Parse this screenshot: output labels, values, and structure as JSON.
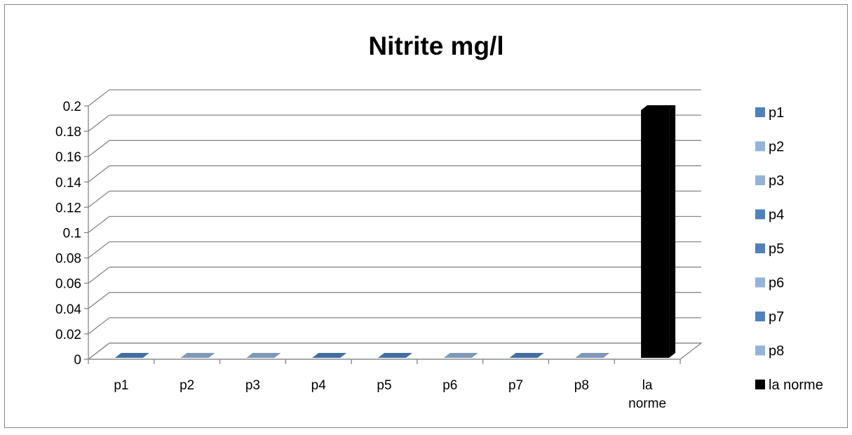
{
  "chart_data": {
    "type": "bar",
    "title": "Nitrite mg/l",
    "xlabel": "",
    "ylabel": "",
    "categories": [
      "p1",
      "p2",
      "p3",
      "p4",
      "p5",
      "p6",
      "p7",
      "p8",
      [
        "la",
        "norme"
      ]
    ],
    "ylim": [
      0,
      0.2
    ],
    "yticks": [
      "0",
      "0.02",
      "0.04",
      "0.06",
      "0.08",
      "0.1",
      "0.12",
      "0.14",
      "0.16",
      "0.18",
      "0.2"
    ],
    "grid": true,
    "legend_position": "right",
    "series": [
      {
        "name": "p1",
        "values": [
          0,
          null,
          null,
          null,
          null,
          null,
          null,
          null,
          null
        ],
        "color": "#4f81bd"
      },
      {
        "name": "p2",
        "values": [
          null,
          0,
          null,
          null,
          null,
          null,
          null,
          null,
          null
        ],
        "color": "#95b3d7"
      },
      {
        "name": "p3",
        "values": [
          null,
          null,
          0,
          null,
          null,
          null,
          null,
          null,
          null
        ],
        "color": "#95b3d7"
      },
      {
        "name": "p4",
        "values": [
          null,
          null,
          null,
          0,
          null,
          null,
          null,
          null,
          null
        ],
        "color": "#4f81bd"
      },
      {
        "name": "p5",
        "values": [
          null,
          null,
          null,
          null,
          0,
          null,
          null,
          null,
          null
        ],
        "color": "#4f81bd"
      },
      {
        "name": "p6",
        "values": [
          null,
          null,
          null,
          null,
          null,
          0,
          null,
          null,
          null
        ],
        "color": "#95b3d7"
      },
      {
        "name": "p7",
        "values": [
          null,
          null,
          null,
          null,
          null,
          null,
          0,
          null,
          null
        ],
        "color": "#4f81bd"
      },
      {
        "name": "p8",
        "values": [
          null,
          null,
          null,
          null,
          null,
          null,
          null,
          0,
          null
        ],
        "color": "#95b3d7"
      },
      {
        "name": "la norme",
        "values": [
          null,
          null,
          null,
          null,
          null,
          null,
          null,
          null,
          0.2
        ],
        "color": "#000000"
      }
    ]
  }
}
